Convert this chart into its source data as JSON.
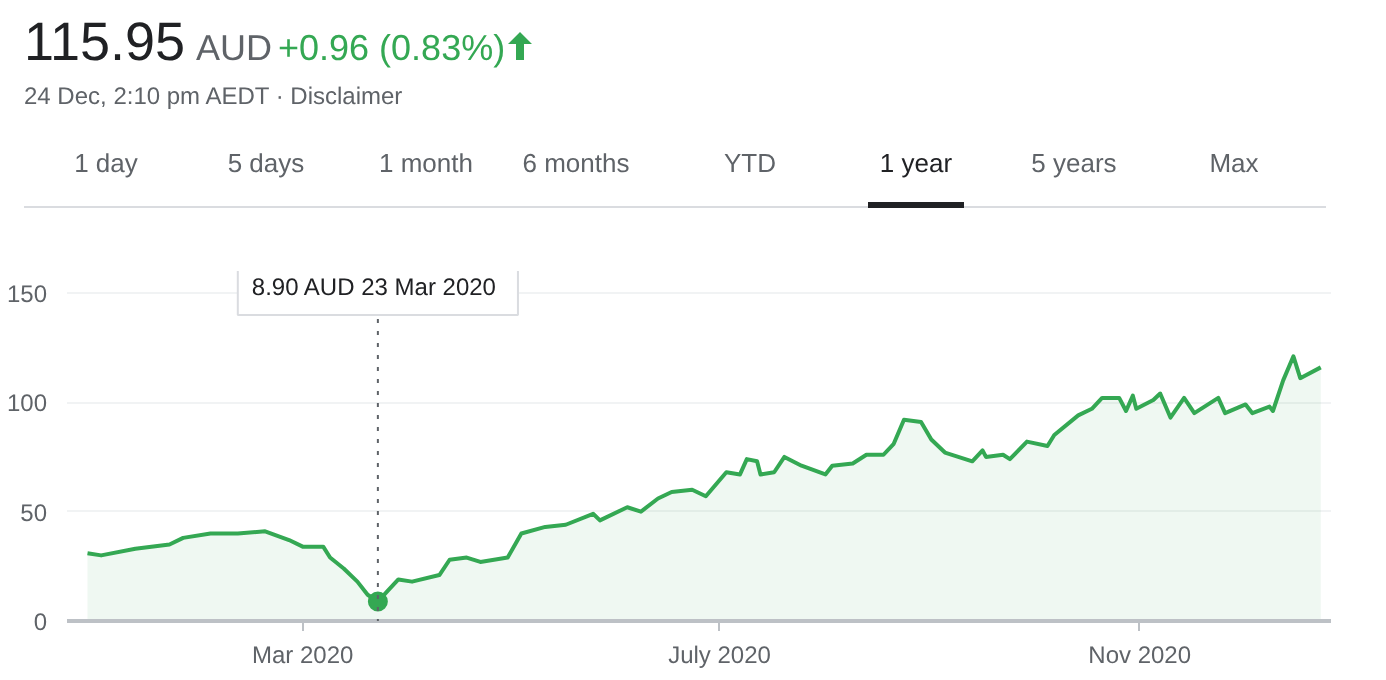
{
  "chart_data": {
    "type": "area",
    "title": "115.95",
    "annotations": [
      "AUD",
      "+0.96 (0.83%)",
      "24 Dec, 2:10 pm AEDT · Disclaimer",
      "1 day",
      "5 days",
      "1 month",
      "6 months",
      "YTD",
      "1 year",
      "5 years",
      "Max"
    ],
    "series": [
      {
        "color": "#34a853",
        "x": [
          "2019-12-29",
          "2020-01-02",
          "2020-01-12",
          "2020-01-22",
          "2020-01-26",
          "2020-02-03",
          "2020-02-11",
          "2020-02-19",
          "2020-02-26",
          "2020-03-01",
          "2020-03-07",
          "2020-03-09",
          "2020-03-13",
          "2020-03-17",
          "2020-03-20",
          "2020-03-23",
          "2020-03-26",
          "2020-03-29",
          "2020-04-02",
          "2020-04-10",
          "2020-04-13",
          "2020-04-18",
          "2020-04-22",
          "2020-04-30",
          "2020-05-04",
          "2020-05-11",
          "2020-05-17",
          "2020-05-25",
          "2020-05-27",
          "2020-06-04",
          "2020-06-08",
          "2020-06-13",
          "2020-06-17",
          "2020-06-23",
          "2020-06-27",
          "2020-07-03",
          "2020-07-07",
          "2020-07-09",
          "2020-07-12",
          "2020-07-13",
          "2020-07-17",
          "2020-07-20",
          "2020-07-25",
          "2020-08-01",
          "2020-08-03",
          "2020-08-09",
          "2020-08-13",
          "2020-08-18",
          "2020-08-21",
          "2020-08-24",
          "2020-08-29",
          "2020-09-01",
          "2020-09-05",
          "2020-09-13",
          "2020-09-16",
          "2020-09-17",
          "2020-09-22",
          "2020-09-24",
          "2020-09-29",
          "2020-10-05",
          "2020-10-07",
          "2020-10-14",
          "2020-10-18",
          "2020-10-21",
          "2020-10-26",
          "2020-10-28",
          "2020-10-30",
          "2020-10-31",
          "2020-11-05",
          "2020-11-07",
          "2020-11-10",
          "2020-11-14",
          "2020-11-17",
          "2020-11-24",
          "2020-11-26",
          "2020-12-02",
          "2020-12-04",
          "2020-12-09",
          "2020-12-10",
          "2020-12-13",
          "2020-12-16",
          "2020-12-18",
          "2020-12-24"
        ],
        "values": [
          31,
          30,
          33,
          35,
          38,
          40,
          40,
          41,
          37,
          34,
          34,
          29,
          24,
          18,
          12,
          8.9,
          14,
          19,
          18,
          21,
          28,
          29,
          27,
          29,
          40,
          43,
          44,
          49,
          46,
          52,
          50,
          56,
          59,
          60,
          57,
          68,
          67,
          74,
          73,
          67,
          68,
          75,
          71,
          67,
          71,
          72,
          76,
          76,
          81,
          92,
          91,
          83,
          77,
          73,
          78,
          75,
          76,
          74,
          82,
          80,
          85,
          94,
          97,
          102,
          102,
          96,
          103,
          97,
          101,
          104,
          93,
          102,
          95,
          102,
          95,
          99,
          95,
          98,
          96,
          110,
          121,
          111,
          115.95
        ]
      }
    ],
    "xlim": [
      "2019-12-23",
      "2020-12-27"
    ],
    "ylim": [
      0,
      160
    ],
    "xticks": [
      {
        "value": "2020-03-01",
        "label": "Mar 2020"
      },
      {
        "value": "2020-07-01",
        "label": "July 2020"
      },
      {
        "value": "2020-11-01",
        "label": "Nov 2020"
      }
    ],
    "yticks": [
      0,
      50,
      100,
      150
    ],
    "ref_lines": [
      {
        "axis": "x",
        "value": "2020-03-23",
        "label": "8.90 AUD  23 Mar 2020",
        "color": "#5f6368",
        "line_style": "dotted"
      }
    ],
    "grid": "y"
  }
}
